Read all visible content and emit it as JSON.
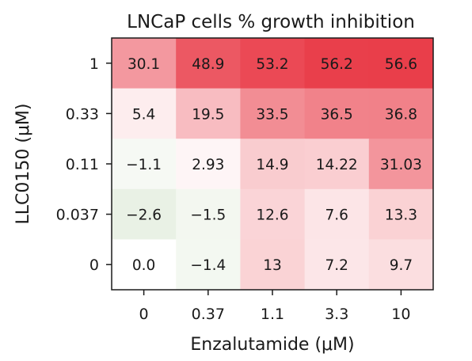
{
  "chart_data": {
    "type": "heatmap",
    "title": "LNCaP cells % growth inhibition",
    "xlabel": "Enzalutamide (μM)",
    "ylabel": "LLC0150 (μM)",
    "x": [
      "0",
      "0.37",
      "1.1",
      "3.3",
      "10"
    ],
    "y": [
      "1",
      "0.33",
      "0.11",
      "0.037",
      "0"
    ],
    "values": [
      [
        30.1,
        48.9,
        53.2,
        56.2,
        56.6
      ],
      [
        5.4,
        19.5,
        33.5,
        36.5,
        36.8
      ],
      [
        -1.1,
        2.93,
        14.9,
        14.22,
        31.03
      ],
      [
        -2.6,
        -1.5,
        12.6,
        7.6,
        13.3
      ],
      [
        0.0,
        -1.4,
        13,
        7.2,
        9.7
      ]
    ],
    "labels": [
      [
        "30.1",
        "48.9",
        "53.2",
        "56.2",
        "56.6"
      ],
      [
        "5.4",
        "19.5",
        "33.5",
        "36.5",
        "36.8"
      ],
      [
        "−1.1",
        "2.93",
        "14.9",
        "14.22",
        "31.03"
      ],
      [
        "−2.6",
        "−1.5",
        "12.6",
        "7.6",
        "13.3"
      ],
      [
        "0.0",
        "−1.4",
        "13",
        "7.2",
        "9.7"
      ]
    ],
    "color_scale": {
      "min": -3,
      "max": 60,
      "negative_color": "#e6efe1",
      "zero_color": "#ffffff",
      "positive_color": "#e8323f"
    }
  }
}
